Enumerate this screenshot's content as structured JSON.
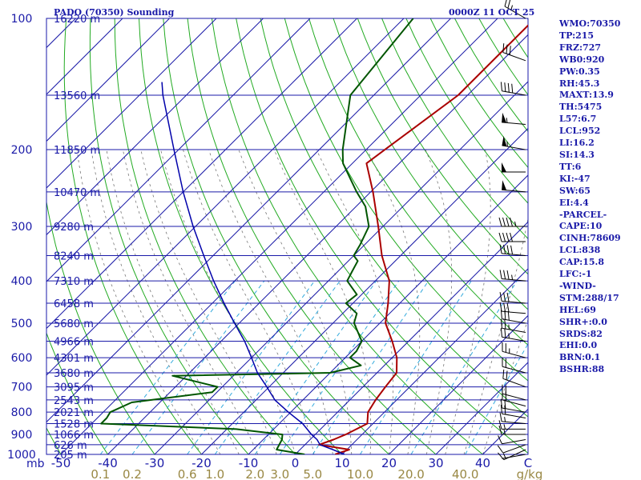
{
  "header": {
    "title": "PADO (70350) Sounding",
    "timestamp": "0000Z 11 OCT 25"
  },
  "indices": [
    "WMO:70350",
    "TP:215",
    "FRZ:727",
    "WB0:920",
    "PW:0.35",
    "RH:45.3",
    "MAXT:13.9",
    "TH:5475",
    "L57:6.7",
    "LCL:952",
    "LI:16.2",
    "SI:14.3",
    "TT:6",
    "KI:-47",
    "SW:65",
    "EI:4.4",
    "-PARCEL-",
    "CAPE:10",
    "CINH:78609",
    "LCL:838",
    "CAP:15.8",
    "LFC:-1",
    "-WIND-",
    "STM:288/17",
    "HEL:69",
    "SHR+:0.0",
    "SRDS:82",
    "EHI:0.0",
    "BRN:0.1",
    "BSHR:88"
  ],
  "colors": {
    "isobar": "#1a1aa8",
    "isotherm": "#1a1aa8",
    "dry_adiabat": "#22aa22",
    "mixing_ratio": "#33aadd",
    "moist_adiabat": "#777777",
    "temperature": "#aa0000",
    "dewpoint": "#005500",
    "parcel": "#0000aa",
    "label_text": "#1a1aa8",
    "mixing_label_text": "#998844"
  },
  "chart_data": {
    "type": "skew-t",
    "xlabel": "C",
    "mixing_ratio_unit": "g/kg",
    "pressure_unit_label": "mb",
    "ylim": [
      1000,
      100
    ],
    "xlim": [
      -50,
      50
    ],
    "pressure_ticks": [
      100,
      200,
      300,
      400,
      500,
      600,
      700,
      800,
      900,
      1000
    ],
    "temperature_ticks": [
      -50,
      -40,
      -30,
      -20,
      -10,
      0,
      10,
      20,
      30,
      40
    ],
    "mixing_ratio_ticks": [
      "0.1",
      "0.2",
      "0.6",
      "1.0",
      "2.0",
      "3.0",
      "5.0",
      "10.0",
      "20.0",
      "40.0"
    ],
    "heights": [
      {
        "p": 100,
        "label": "16220 m"
      },
      {
        "p": 150,
        "label": "13560 m"
      },
      {
        "p": 200,
        "label": "11850 m"
      },
      {
        "p": 250,
        "label": "10470 m"
      },
      {
        "p": 300,
        "label": "9280 m"
      },
      {
        "p": 350,
        "label": "8240 m"
      },
      {
        "p": 400,
        "label": "7310 m"
      },
      {
        "p": 450,
        "label": "6458 m"
      },
      {
        "p": 500,
        "label": "5680 m"
      },
      {
        "p": 550,
        "label": "4966 m"
      },
      {
        "p": 600,
        "label": "4301 m"
      },
      {
        "p": 650,
        "label": "3680 m"
      },
      {
        "p": 700,
        "label": "3095 m"
      },
      {
        "p": 750,
        "label": "2543 m"
      },
      {
        "p": 800,
        "label": "2021 m"
      },
      {
        "p": 850,
        "label": "1528 m"
      },
      {
        "p": 900,
        "label": "1066 m"
      },
      {
        "p": 950,
        "label": "626 m"
      },
      {
        "p": 1000,
        "label": "205 m"
      }
    ],
    "series": [
      {
        "name": "temperature",
        "points": [
          [
            1000,
            8.5
          ],
          [
            975,
            10.5
          ],
          [
            950,
            3
          ],
          [
            925,
            5
          ],
          [
            900,
            6.5
          ],
          [
            850,
            8.8
          ],
          [
            800,
            6.5
          ],
          [
            750,
            5.5
          ],
          [
            700,
            4.8
          ],
          [
            650,
            4.2
          ],
          [
            600,
            1
          ],
          [
            550,
            -3.5
          ],
          [
            500,
            -8.8
          ],
          [
            450,
            -12.5
          ],
          [
            400,
            -17
          ],
          [
            350,
            -24
          ],
          [
            300,
            -31
          ],
          [
            250,
            -39.5
          ],
          [
            215,
            -47
          ],
          [
            200,
            -46
          ],
          [
            150,
            -42
          ],
          [
            100,
            -42
          ]
        ]
      },
      {
        "name": "dewpoint",
        "points": [
          [
            1000,
            2
          ],
          [
            975,
            -5
          ],
          [
            950,
            -5.5
          ],
          [
            925,
            -6
          ],
          [
            900,
            -7
          ],
          [
            875,
            -18
          ],
          [
            850,
            -48
          ],
          [
            825,
            -48
          ],
          [
            800,
            -48.5
          ],
          [
            760,
            -46
          ],
          [
            720,
            -31
          ],
          [
            700,
            -31
          ],
          [
            660,
            -43
          ],
          [
            650,
            -10
          ],
          [
            625,
            -5
          ],
          [
            600,
            -9
          ],
          [
            580,
            -9
          ],
          [
            550,
            -10
          ],
          [
            500,
            -15.5
          ],
          [
            475,
            -17
          ],
          [
            450,
            -21.5
          ],
          [
            430,
            -21
          ],
          [
            400,
            -26
          ],
          [
            380,
            -27
          ],
          [
            360,
            -28
          ],
          [
            350,
            -30
          ],
          [
            330,
            -31
          ],
          [
            300,
            -33
          ],
          [
            270,
            -38
          ],
          [
            250,
            -43
          ],
          [
            215,
            -52
          ],
          [
            200,
            -55
          ],
          [
            150,
            -65
          ],
          [
            100,
            -68
          ]
        ]
      },
      {
        "name": "parcel",
        "points": [
          [
            1000,
            10.5
          ],
          [
            975,
            7
          ],
          [
            950,
            3.2
          ],
          [
            925,
            1.5
          ],
          [
            900,
            -0.8
          ],
          [
            850,
            -5
          ],
          [
            800,
            -10.5
          ],
          [
            750,
            -16
          ],
          [
            700,
            -20.5
          ],
          [
            650,
            -25.5
          ],
          [
            600,
            -30
          ],
          [
            550,
            -35
          ],
          [
            500,
            -41
          ],
          [
            450,
            -47.5
          ],
          [
            400,
            -54.5
          ],
          [
            350,
            -62
          ],
          [
            300,
            -70.5
          ],
          [
            250,
            -80
          ],
          [
            200,
            -91
          ],
          [
            150,
            -105
          ],
          [
            140,
            -108
          ]
        ]
      }
    ],
    "wind_barbs": [
      {
        "p": 1000,
        "dir": 260,
        "kt": 5
      },
      {
        "p": 975,
        "dir": 245,
        "kt": 10
      },
      {
        "p": 950,
        "dir": 250,
        "kt": 10
      },
      {
        "p": 925,
        "dir": 260,
        "kt": 10
      },
      {
        "p": 900,
        "dir": 270,
        "kt": 15
      },
      {
        "p": 875,
        "dir": 270,
        "kt": 15
      },
      {
        "p": 850,
        "dir": 275,
        "kt": 15
      },
      {
        "p": 825,
        "dir": 280,
        "kt": 20
      },
      {
        "p": 800,
        "dir": 280,
        "kt": 20
      },
      {
        "p": 775,
        "dir": 285,
        "kt": 20
      },
      {
        "p": 750,
        "dir": 285,
        "kt": 20
      },
      {
        "p": 700,
        "dir": 290,
        "kt": 20
      },
      {
        "p": 650,
        "dir": 285,
        "kt": 20
      },
      {
        "p": 600,
        "dir": 285,
        "kt": 25
      },
      {
        "p": 550,
        "dir": 280,
        "kt": 25
      },
      {
        "p": 525,
        "dir": 280,
        "kt": 25
      },
      {
        "p": 500,
        "dir": 280,
        "kt": 30
      },
      {
        "p": 475,
        "dir": 275,
        "kt": 30
      },
      {
        "p": 450,
        "dir": 275,
        "kt": 30
      },
      {
        "p": 400,
        "dir": 275,
        "kt": 35
      },
      {
        "p": 350,
        "dir": 275,
        "kt": 40
      },
      {
        "p": 325,
        "dir": 270,
        "kt": 40
      },
      {
        "p": 300,
        "dir": 270,
        "kt": 45
      },
      {
        "p": 250,
        "dir": 275,
        "kt": 50
      },
      {
        "p": 225,
        "dir": 270,
        "kt": 50
      },
      {
        "p": 200,
        "dir": 280,
        "kt": 55
      },
      {
        "p": 175,
        "dir": 275,
        "kt": 55
      },
      {
        "p": 150,
        "dir": 280,
        "kt": 40
      },
      {
        "p": 125,
        "dir": 290,
        "kt": 30
      },
      {
        "p": 100,
        "dir": 300,
        "kt": 25
      }
    ],
    "grid": true,
    "legend": "none"
  }
}
